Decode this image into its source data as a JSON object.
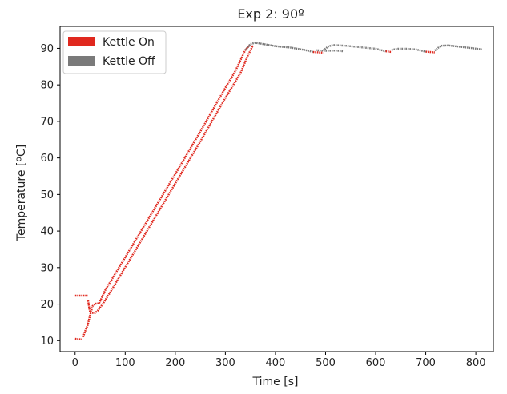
{
  "chart_data": {
    "type": "scatter",
    "title": "Exp 2: 90º",
    "xlabel": "Time [s]",
    "ylabel": "Temperature [ºC]",
    "xlim": [
      -30,
      835
    ],
    "ylim": [
      7,
      96
    ],
    "xticks": [
      0,
      100,
      200,
      300,
      400,
      500,
      600,
      700,
      800
    ],
    "yticks": [
      10,
      20,
      30,
      40,
      50,
      60,
      70,
      80,
      90
    ],
    "grid": false,
    "legend": "top-left",
    "series": [
      {
        "name": "Kettle On",
        "color": "#e0281e",
        "segments": [
          [
            [
              0,
              22.3
            ],
            [
              25,
              22.3
            ]
          ],
          [
            [
              26,
              21.0
            ],
            [
              28,
              19.0
            ],
            [
              30,
              17.8
            ],
            [
              34,
              17.6
            ],
            [
              40,
              17.6
            ],
            [
              45,
              18.2
            ],
            [
              55,
              20.0
            ],
            [
              70,
              23.2
            ],
            [
              100,
              30.1
            ],
            [
              150,
              41.5
            ],
            [
              200,
              53.0
            ],
            [
              250,
              64.5
            ],
            [
              300,
              76.4
            ],
            [
              330,
              83.2
            ],
            [
              345,
              88.0
            ],
            [
              355,
              90.8
            ]
          ],
          [
            [
              0,
              10.5
            ],
            [
              15,
              10.3
            ]
          ],
          [
            [
              16,
              11.0
            ],
            [
              20,
              12.6
            ],
            [
              25,
              14.2
            ],
            [
              30,
              17.0
            ],
            [
              35,
              19.5
            ],
            [
              40,
              20.1
            ],
            [
              48,
              20.2
            ],
            [
              60,
              23.8
            ],
            [
              100,
              32.8
            ],
            [
              150,
              44.2
            ],
            [
              200,
              55.6
            ],
            [
              250,
              67.2
            ],
            [
              300,
              79.2
            ],
            [
              320,
              83.8
            ],
            [
              340,
              89.6
            ],
            [
              350,
              91.0
            ]
          ],
          [
            [
              475,
              89.0
            ],
            [
              495,
              88.8
            ]
          ],
          [
            [
              620,
              89.2
            ],
            [
              632,
              89.0
            ]
          ],
          [
            [
              700,
              89.1
            ],
            [
              718,
              88.9
            ]
          ]
        ]
      },
      {
        "name": "Kettle Off",
        "color": "#7a7a7a",
        "segments": [
          [
            [
              340,
              89.5
            ],
            [
              350,
              91.2
            ],
            [
              360,
              91.5
            ],
            [
              370,
              91.3
            ],
            [
              400,
              90.6
            ],
            [
              430,
              90.2
            ],
            [
              460,
              89.5
            ],
            [
              475,
              89.0
            ]
          ],
          [
            [
              495,
              89.4
            ],
            [
              505,
              90.5
            ],
            [
              515,
              90.9
            ],
            [
              540,
              90.7
            ],
            [
              570,
              90.3
            ],
            [
              600,
              89.9
            ],
            [
              620,
              89.2
            ]
          ],
          [
            [
              480,
              89.5
            ],
            [
              500,
              89.3
            ],
            [
              520,
              89.4
            ],
            [
              535,
              89.2
            ]
          ],
          [
            [
              632,
              89.6
            ],
            [
              645,
              89.9
            ],
            [
              660,
              89.9
            ],
            [
              680,
              89.7
            ],
            [
              700,
              89.1
            ]
          ],
          [
            [
              718,
              89.4
            ],
            [
              730,
              90.7
            ],
            [
              745,
              90.8
            ],
            [
              770,
              90.4
            ],
            [
              795,
              90.0
            ],
            [
              812,
              89.7
            ]
          ]
        ]
      }
    ]
  }
}
